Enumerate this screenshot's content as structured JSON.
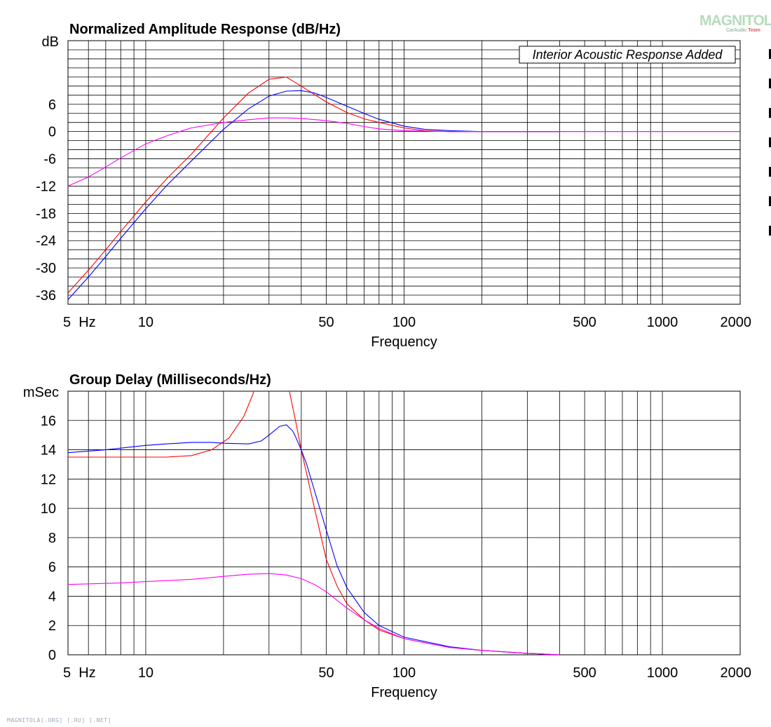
{
  "logo": {
    "text": "MAGNITOLA",
    "sub_a": "CarAudio",
    "sub_b": "Team"
  },
  "watermark": "MAGNITOLA[.ORG] [.RU] [.NET]",
  "chart_data": [
    {
      "type": "line",
      "title": "Normalized Amplitude Response (dB/Hz)",
      "xlabel": "Frequency",
      "ylabel": "dB",
      "x_scale": "log",
      "xlim": [
        5,
        2000
      ],
      "ylim": [
        -38,
        20
      ],
      "x_tick_labels": [
        "5  Hz",
        "10",
        "50",
        "100",
        "500",
        "1000",
        "2000"
      ],
      "x_tick_values": [
        5,
        10,
        50,
        100,
        500,
        1000,
        2000
      ],
      "y_tick_values": [
        6,
        0,
        -6,
        -12,
        -18,
        -24,
        -30,
        -36
      ],
      "y_tick_labels": [
        "6",
        "0",
        "-6",
        "-12",
        "-18",
        "-24",
        "-30",
        "-36"
      ],
      "grid": true,
      "annotation": "Interior Acoustic Response Added",
      "series": [
        {
          "color": "#ff0000",
          "x": [
            5,
            6,
            7,
            8,
            10,
            12,
            15,
            20,
            25,
            30,
            35,
            40,
            50,
            60,
            70,
            80,
            100,
            120,
            150,
            200,
            400
          ],
          "y": [
            -35.5,
            -30.5,
            -26,
            -22,
            -15.5,
            -10.5,
            -5,
            3,
            8.5,
            11.5,
            12,
            10,
            6.5,
            4.2,
            2.8,
            2,
            0.8,
            0.2,
            0,
            0,
            0
          ]
        },
        {
          "color": "#0000ff",
          "x": [
            5,
            6,
            7,
            8,
            10,
            12,
            15,
            20,
            25,
            30,
            35,
            40,
            45,
            50,
            60,
            70,
            80,
            100,
            120,
            150,
            200,
            400
          ],
          "y": [
            -37,
            -32,
            -27.5,
            -23.5,
            -17,
            -12,
            -6.5,
            0.5,
            5,
            7.8,
            8.9,
            9,
            8.5,
            7.5,
            5.6,
            4,
            2.7,
            1.2,
            0.5,
            0.2,
            0,
            0
          ]
        },
        {
          "color": "#ff00ff",
          "x": [
            5,
            6,
            7,
            8,
            10,
            12,
            13.5,
            15,
            20,
            25,
            30,
            35,
            40,
            50,
            60,
            70,
            80,
            100,
            150,
            200,
            500,
            1000,
            2000
          ],
          "y": [
            -12,
            -10,
            -7.8,
            -5.8,
            -2.7,
            -1,
            0,
            0.8,
            2,
            2.6,
            3,
            3,
            2.9,
            2.4,
            1.8,
            1.1,
            0.6,
            0.2,
            0,
            0,
            0,
            0,
            0
          ]
        }
      ]
    },
    {
      "type": "line",
      "title": "Group Delay (Milliseconds/Hz)",
      "xlabel": "Frequency",
      "ylabel": "mSec",
      "x_scale": "log",
      "xlim": [
        5,
        2000
      ],
      "ylim": [
        0,
        18
      ],
      "x_tick_labels": [
        "5  Hz",
        "10",
        "50",
        "100",
        "500",
        "1000",
        "2000"
      ],
      "x_tick_values": [
        5,
        10,
        50,
        100,
        500,
        1000,
        2000
      ],
      "y_tick_values": [
        16,
        14,
        12,
        10,
        8,
        6,
        4,
        2,
        0
      ],
      "y_tick_labels": [
        "16",
        "14",
        "12",
        "10",
        "8",
        "6",
        "4",
        "2",
        "0"
      ],
      "grid": true,
      "series": [
        {
          "color": "#ff0000",
          "x": [
            5,
            8,
            12,
            15,
            18,
            21,
            24,
            26,
            27,
            30,
            33,
            35,
            38,
            40,
            45,
            50,
            55,
            60,
            70,
            80,
            100,
            150,
            200,
            300,
            400
          ],
          "y": [
            13.5,
            13.5,
            13.5,
            13.6,
            14,
            14.8,
            16.3,
            17.8,
            19,
            24,
            24,
            19,
            16,
            14,
            10,
            6.5,
            4.7,
            3.5,
            2.4,
            1.7,
            1.1,
            0.5,
            0.3,
            0.1,
            0
          ]
        },
        {
          "color": "#0000ff",
          "x": [
            5,
            7,
            10,
            12,
            15,
            18,
            20,
            25,
            28,
            30,
            33,
            35,
            37,
            38,
            40,
            42,
            45,
            50,
            55,
            60,
            70,
            80,
            100,
            150,
            200,
            300,
            400
          ],
          "y": [
            13.8,
            14,
            14.3,
            14.4,
            14.5,
            14.5,
            14.45,
            14.4,
            14.6,
            15,
            15.6,
            15.7,
            15.3,
            14.9,
            14,
            13,
            11.2,
            8.5,
            6.1,
            4.6,
            2.9,
            2,
            1.2,
            0.55,
            0.3,
            0.1,
            0
          ]
        },
        {
          "color": "#ff00ff",
          "x": [
            5,
            8,
            10,
            15,
            20,
            25,
            30,
            35,
            40,
            45,
            50,
            60,
            70,
            80,
            100,
            150,
            200,
            300,
            400
          ],
          "y": [
            4.8,
            4.9,
            5,
            5.15,
            5.35,
            5.5,
            5.55,
            5.45,
            5.2,
            4.8,
            4.3,
            3.2,
            2.4,
            1.8,
            1.1,
            0.5,
            0.3,
            0.1,
            0
          ]
        }
      ]
    }
  ]
}
